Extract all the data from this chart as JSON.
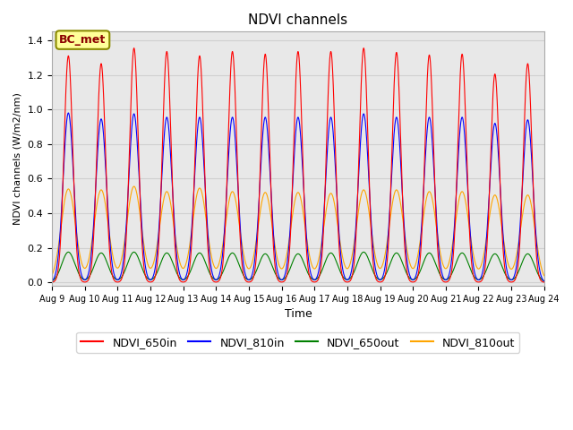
{
  "title": "NDVI channels",
  "xlabel": "Time",
  "ylabel": "NDVI channels (W/m2/nm)",
  "ylim": [
    -0.02,
    1.45
  ],
  "colors": {
    "NDVI_650in": "red",
    "NDVI_810in": "blue",
    "NDVI_650out": "green",
    "NDVI_810out": "orange"
  },
  "peak_heights": {
    "NDVI_650in": [
      1.31,
      1.265,
      1.355,
      1.335,
      1.31,
      1.335,
      1.32,
      1.335,
      1.335,
      1.355,
      1.33,
      1.315,
      1.32,
      1.205,
      1.265
    ],
    "NDVI_810in": [
      0.98,
      0.945,
      0.975,
      0.955,
      0.955,
      0.955,
      0.955,
      0.955,
      0.955,
      0.975,
      0.955,
      0.955,
      0.955,
      0.92,
      0.94
    ],
    "NDVI_650out": [
      0.175,
      0.17,
      0.175,
      0.17,
      0.17,
      0.17,
      0.165,
      0.165,
      0.17,
      0.175,
      0.17,
      0.17,
      0.17,
      0.165,
      0.165
    ],
    "NDVI_810out": [
      0.54,
      0.535,
      0.555,
      0.525,
      0.545,
      0.525,
      0.52,
      0.52,
      0.515,
      0.535,
      0.535,
      0.525,
      0.525,
      0.505,
      0.505
    ]
  },
  "peak_widths": {
    "NDVI_650in": 0.13,
    "NDVI_810in": 0.16,
    "NDVI_650out": 0.2,
    "NDVI_810out": 0.22
  },
  "annotation_text": "BC_met",
  "annotation_color": "#8B0000",
  "annotation_bg": "#FFFF99",
  "annotation_border": "#8B8B00",
  "grid_color": "#d0d0d0",
  "plot_bg": "#e8e8e8",
  "tick_labels": [
    "Aug 9",
    "Aug 10",
    "Aug 11",
    "Aug 12",
    "Aug 13",
    "Aug 14",
    "Aug 15",
    "Aug 16",
    "Aug 17",
    "Aug 18",
    "Aug 19",
    "Aug 20",
    "Aug 21",
    "Aug 22",
    "Aug 23",
    "Aug 24"
  ]
}
